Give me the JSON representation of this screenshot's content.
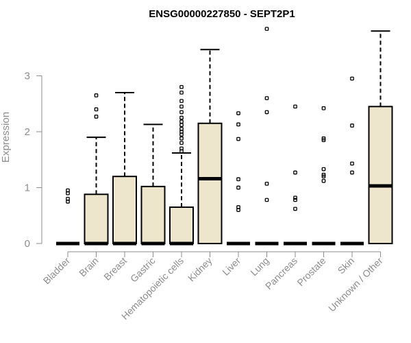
{
  "chart_data": {
    "type": "box",
    "title": "ENSG00000227850 - SEPT2P1",
    "xlabel": "",
    "ylabel": "Expression",
    "ylim": [
      0,
      3.8
    ],
    "yticks": [
      0,
      1,
      2,
      3
    ],
    "box_fill": "#ede6cc",
    "categories": [
      "Bladder",
      "Brain",
      "Breast",
      "Gastric",
      "Hematopoietic cells",
      "Kidney",
      "Liver",
      "Lung",
      "Pancreas",
      "Prostate",
      "Skin",
      "Unknown / Other"
    ],
    "series": [
      {
        "category": "Bladder",
        "min": 0,
        "q1": 0,
        "median": 0,
        "q3": 0,
        "max": 0,
        "outliers": [
          0.75,
          0.8,
          0.9,
          0.95
        ]
      },
      {
        "category": "Brain",
        "min": 0,
        "q1": 0,
        "median": 0,
        "q3": 0.88,
        "max": 1.9,
        "outliers": [
          2.27,
          2.4,
          2.65
        ]
      },
      {
        "category": "Breast",
        "min": 0,
        "q1": 0,
        "median": 0,
        "q3": 1.2,
        "max": 2.7,
        "outliers": []
      },
      {
        "category": "Gastric",
        "min": 0,
        "q1": 0,
        "median": 0,
        "q3": 1.02,
        "max": 2.13,
        "outliers": []
      },
      {
        "category": "Hematopoietic cells",
        "min": 0,
        "q1": 0,
        "median": 0,
        "q3": 0.65,
        "max": 1.62,
        "outliers": [
          1.65,
          1.7,
          1.8,
          1.88,
          1.95,
          2.0,
          2.05,
          2.12,
          2.18,
          2.25,
          2.35,
          2.45,
          2.55,
          2.7,
          2.8
        ]
      },
      {
        "category": "Kidney",
        "min": 0,
        "q1": 0,
        "median": 1.16,
        "q3": 2.15,
        "max": 3.47,
        "outliers": []
      },
      {
        "category": "Liver",
        "min": 0,
        "q1": 0,
        "median": 0,
        "q3": 0,
        "max": 0,
        "outliers": [
          0.6,
          0.65,
          1.0,
          1.15,
          1.87,
          2.13,
          2.33
        ]
      },
      {
        "category": "Lung",
        "min": 0,
        "q1": 0,
        "median": 0,
        "q3": 0,
        "max": 0,
        "outliers": [
          0.78,
          1.07,
          2.35,
          2.6,
          3.84
        ]
      },
      {
        "category": "Pancreas",
        "min": 0,
        "q1": 0,
        "median": 0,
        "q3": 0,
        "max": 0,
        "outliers": [
          0.62,
          0.78,
          0.82,
          1.27,
          2.45
        ]
      },
      {
        "category": "Prostate",
        "min": 0,
        "q1": 0,
        "median": 0,
        "q3": 0,
        "max": 0,
        "outliers": [
          1.12,
          1.2,
          1.23,
          1.33,
          1.85,
          1.88,
          2.42
        ]
      },
      {
        "category": "Skin",
        "min": 0,
        "q1": 0,
        "median": 0,
        "q3": 0,
        "max": 0,
        "outliers": [
          1.27,
          1.43,
          2.11,
          2.95
        ]
      },
      {
        "category": "Unknown / Other",
        "min": 0,
        "q1": 0,
        "median": 1.03,
        "q3": 2.45,
        "max": 3.8,
        "outliers": []
      }
    ]
  }
}
